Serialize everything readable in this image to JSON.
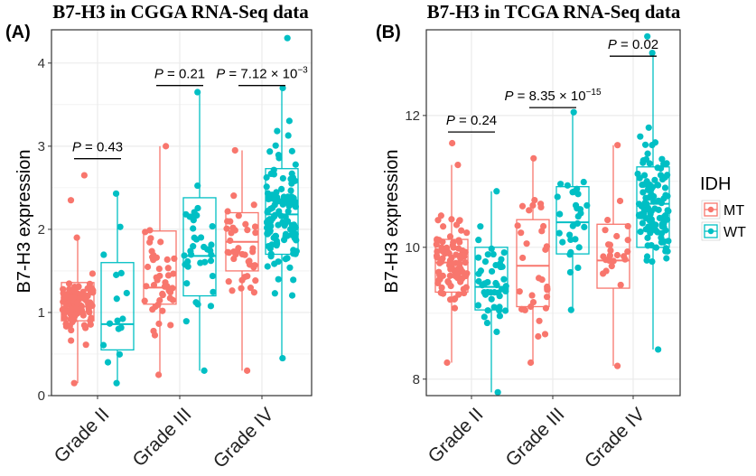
{
  "colors": {
    "MT": "#F8766D",
    "WT": "#00BFC4",
    "grid": "#EBEBEB",
    "border": "#333333"
  },
  "legend": {
    "title": "IDH",
    "labels": [
      "MT",
      "WT"
    ]
  },
  "chart_data": [
    {
      "type": "box",
      "panel_label": "(A)",
      "title": "B7-H3 in CGGA RNA-Seq data",
      "ylabel": "B7-H3 expression",
      "ylim": [
        0,
        4.4
      ],
      "yticks": [
        "0",
        "1",
        "2",
        "3",
        "4"
      ],
      "categories": [
        "Grade II",
        "Grade III",
        "Grade IV"
      ],
      "pvalues": [
        {
          "prefix": "P",
          "text": " = 0.43",
          "y": 2.85
        },
        {
          "prefix": "P",
          "text": " = 0.21",
          "y": 3.73
        },
        {
          "prefix": "P",
          "text": " = 7.12 × 10",
          "exp": "−3",
          "y": 3.73
        }
      ],
      "series": [
        {
          "name": "MT",
          "boxes": [
            {
              "min": 0.15,
              "q1": 0.9,
              "median": 1.07,
              "q3": 1.36,
              "max": 1.9,
              "outliers": [
                2.35,
                2.65
              ]
            },
            {
              "min": 0.25,
              "q1": 1.1,
              "median": 1.3,
              "q3": 1.98,
              "max": 3.0,
              "outliers": []
            },
            {
              "min": 0.3,
              "q1": 1.5,
              "median": 1.85,
              "q3": 2.2,
              "max": 2.95,
              "outliers": []
            }
          ]
        },
        {
          "name": "WT",
          "boxes": [
            {
              "min": 0.15,
              "q1": 0.55,
              "median": 0.86,
              "q3": 1.6,
              "max": 2.43,
              "outliers": []
            },
            {
              "min": 0.3,
              "q1": 1.2,
              "median": 1.68,
              "q3": 2.38,
              "max": 3.65,
              "outliers": []
            },
            {
              "min": 0.45,
              "q1": 1.7,
              "median": 2.18,
              "q3": 2.73,
              "max": 3.7,
              "outliers": [
                4.3
              ]
            }
          ]
        }
      ]
    },
    {
      "type": "box",
      "panel_label": "(B)",
      "title": "B7-H3 in TCGA RNA-Seq data",
      "ylabel": "B7-H3 expression",
      "ylim": [
        7.75,
        13.3
      ],
      "yticks": [
        "8",
        "10",
        "12"
      ],
      "categories": [
        "Grade II",
        "Grade III",
        "Grade IV"
      ],
      "pvalues": [
        {
          "prefix": "P",
          "text": " = 0.24",
          "y": 11.75
        },
        {
          "prefix": "P",
          "text": " = 8.35 × 10",
          "exp": "−15",
          "y": 12.12
        },
        {
          "prefix": "P",
          "text": " = 0.02",
          "y": 12.9
        }
      ],
      "series": [
        {
          "name": "MT",
          "boxes": [
            {
              "min": 8.25,
              "q1": 9.32,
              "median": 9.77,
              "q3": 10.12,
              "max": 11.25,
              "outliers": [
                11.58
              ]
            },
            {
              "min": 8.25,
              "q1": 9.1,
              "median": 9.72,
              "q3": 10.42,
              "max": 11.35,
              "outliers": []
            },
            {
              "min": 8.2,
              "q1": 9.38,
              "median": 9.8,
              "q3": 10.35,
              "max": 11.55,
              "outliers": []
            }
          ]
        },
        {
          "name": "WT",
          "boxes": [
            {
              "min": 7.8,
              "q1": 9.05,
              "median": 9.4,
              "q3": 10.0,
              "max": 10.85,
              "outliers": []
            },
            {
              "min": 9.05,
              "q1": 9.9,
              "median": 10.38,
              "q3": 10.92,
              "max": 12.05,
              "outliers": []
            },
            {
              "min": 8.45,
              "q1": 10.0,
              "median": 10.66,
              "q3": 11.22,
              "max": 12.95,
              "outliers": [
                13.2
              ]
            }
          ]
        }
      ]
    }
  ]
}
